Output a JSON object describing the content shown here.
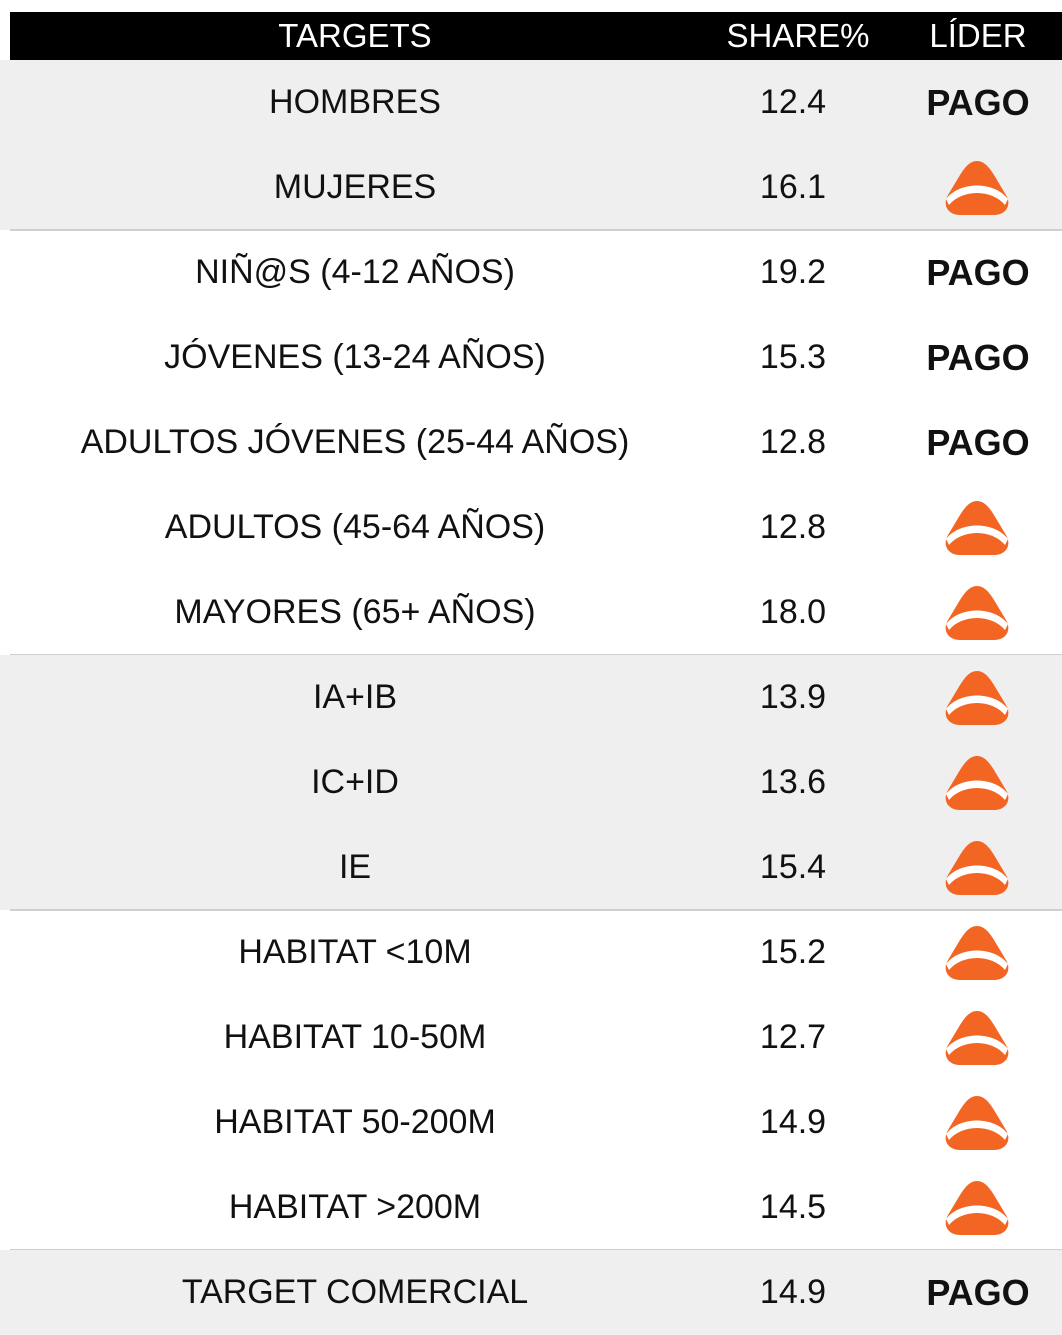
{
  "header": {
    "targets": "TARGETS",
    "share": "SHARE%",
    "leader": "LÍDER"
  },
  "groups": [
    {
      "shaded": true,
      "rows": [
        {
          "target": "HOMBRES",
          "share": "12.4",
          "leader": "PAGO"
        },
        {
          "target": "MUJERES",
          "share": "16.1"
        }
      ]
    },
    {
      "shaded": false,
      "rows": [
        {
          "target": "NIÑ@S (4-12 AÑOS)",
          "share": "19.2",
          "leader": "PAGO"
        },
        {
          "target": "JÓVENES (13-24 AÑOS)",
          "share": "15.3",
          "leader": "PAGO"
        },
        {
          "target": "ADULTOS JÓVENES (25-44 AÑOS)",
          "share": "12.8",
          "leader": "PAGO"
        },
        {
          "target": "ADULTOS (45-64 AÑOS)",
          "share": "12.8"
        },
        {
          "target": "MAYORES (65+ AÑOS)",
          "share": "18.0"
        }
      ]
    },
    {
      "shaded": true,
      "rows": [
        {
          "target": "IA+IB",
          "share": "13.9"
        },
        {
          "target": "IC+ID",
          "share": "13.6"
        },
        {
          "target": "IE",
          "share": "15.4"
        }
      ]
    },
    {
      "shaded": false,
      "rows": [
        {
          "target": "HABITAT <10M",
          "share": "15.2"
        },
        {
          "target": "HABITAT 10-50M",
          "share": "12.7"
        },
        {
          "target": "HABITAT 50-200M",
          "share": "14.9"
        },
        {
          "target": "HABITAT >200M",
          "share": "14.5"
        }
      ]
    },
    {
      "shaded": true,
      "rows": [
        {
          "target": "TARGET COMERCIAL",
          "share": "14.9",
          "leader": "PAGO"
        }
      ]
    }
  ]
}
